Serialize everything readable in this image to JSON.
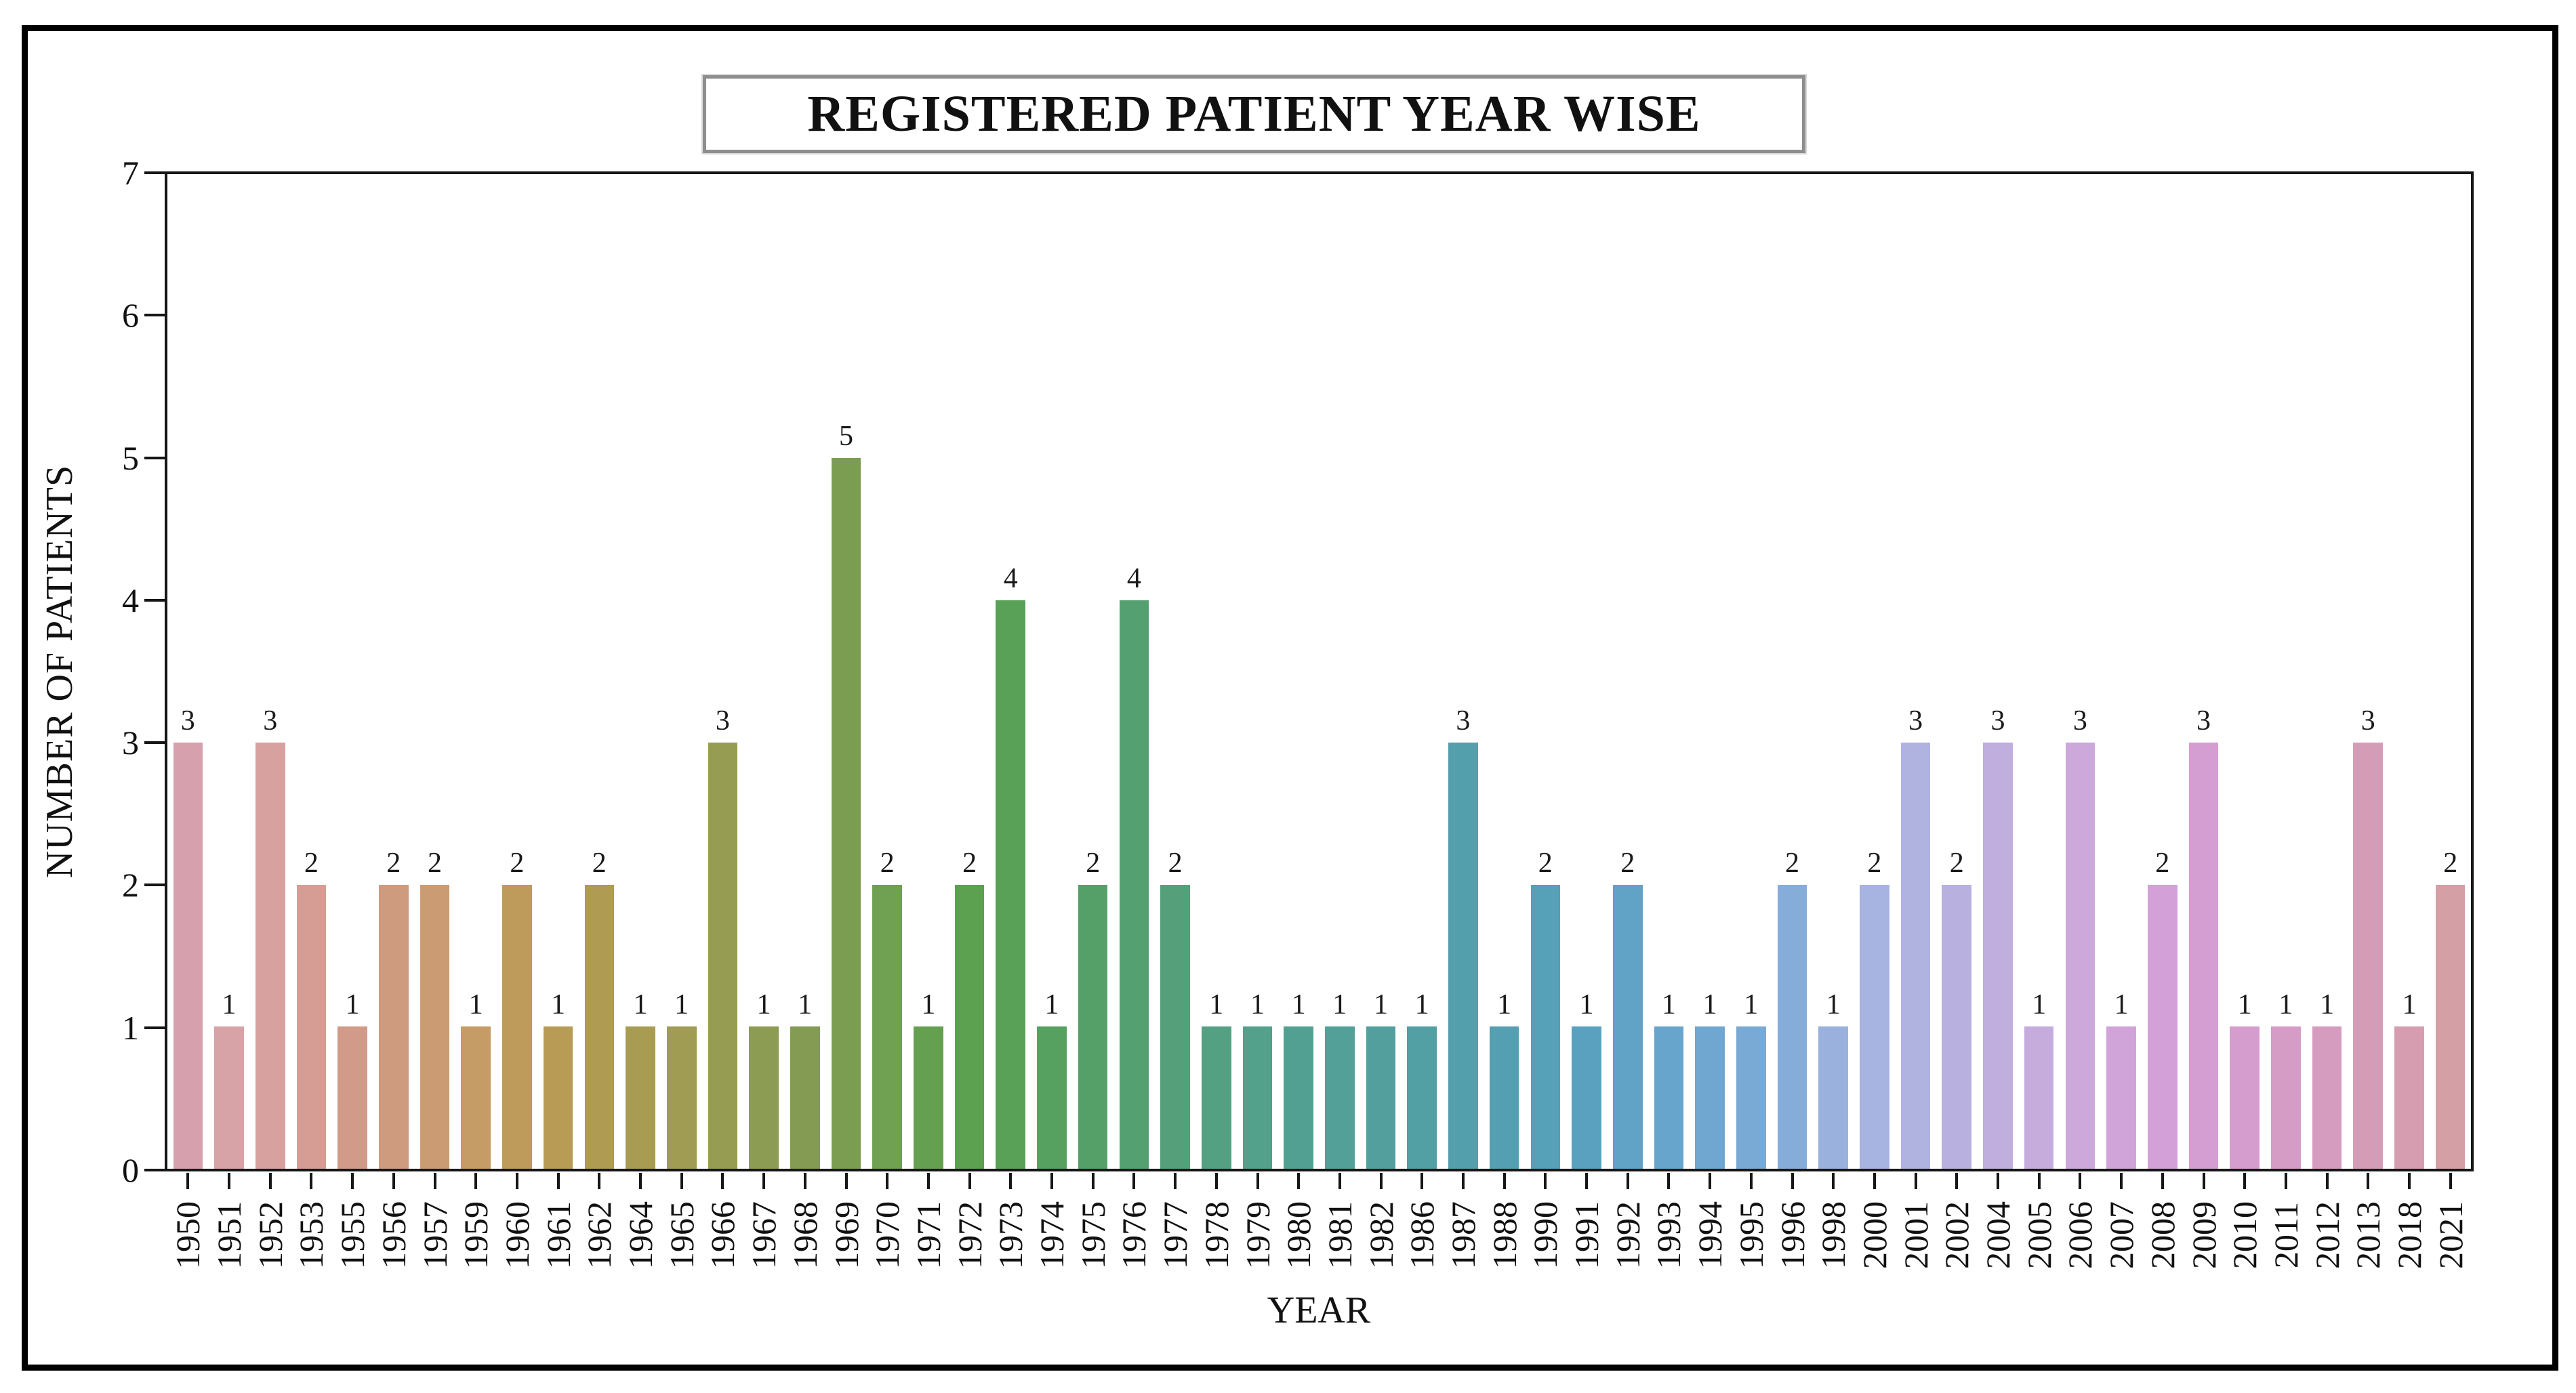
{
  "chart_data": {
    "type": "bar",
    "title": "REGISTERED PATIENT YEAR WISE",
    "xlabel": "YEAR",
    "ylabel": "NUMBER OF PATIENTS",
    "ylim": [
      0,
      7
    ],
    "yticks": [
      0,
      1,
      2,
      3,
      4,
      5,
      6,
      7
    ],
    "grid": false,
    "legend_position": "none",
    "bar_value_labels_shown": true,
    "categories": [
      "1950",
      "1951",
      "1952",
      "1953",
      "1955",
      "1956",
      "1957",
      "1959",
      "1960",
      "1961",
      "1962",
      "1964",
      "1965",
      "1966",
      "1967",
      "1968",
      "1969",
      "1970",
      "1971",
      "1972",
      "1973",
      "1974",
      "1975",
      "1976",
      "1977",
      "1978",
      "1979",
      "1980",
      "1981",
      "1982",
      "1986",
      "1987",
      "1988",
      "1990",
      "1991",
      "1992",
      "1993",
      "1994",
      "1995",
      "1996",
      "1998",
      "2000",
      "2001",
      "2002",
      "2004",
      "2005",
      "2006",
      "2007",
      "2008",
      "2009",
      "2010",
      "2011",
      "2012",
      "2013",
      "2018",
      "2021"
    ],
    "values": [
      3,
      1,
      3,
      2,
      1,
      2,
      2,
      1,
      2,
      1,
      2,
      1,
      1,
      3,
      1,
      1,
      5,
      2,
      1,
      2,
      4,
      1,
      2,
      4,
      2,
      1,
      1,
      1,
      1,
      1,
      1,
      3,
      1,
      2,
      1,
      2,
      1,
      1,
      1,
      2,
      1,
      2,
      3,
      2,
      3,
      1,
      3,
      1,
      2,
      3,
      1,
      1,
      1,
      3,
      1,
      2
    ],
    "bar_colors": [
      "#d6a1ac",
      "#d7a3a7",
      "#d7a1a0",
      "#d59d94",
      "#d29a89",
      "#cf9b7e",
      "#cb9b73",
      "#c59b66",
      "#bf9b5b",
      "#b89b55",
      "#b09b53",
      "#a89c53",
      "#a09c53",
      "#979c53",
      "#8d9c53",
      "#839b52",
      "#7a9d52",
      "#70a051",
      "#65a050",
      "#5ca150",
      "#58a156",
      "#56a15f",
      "#55a068",
      "#55a071",
      "#55a07b",
      "#54a083",
      "#53a08b",
      "#52a092",
      "#52a098",
      "#529f9e",
      "#529fa4",
      "#539fab",
      "#549fb1",
      "#56a0b8",
      "#5aa1bf",
      "#60a3c6",
      "#67a5cc",
      "#6fa7d1",
      "#79aad6",
      "#86add9",
      "#9ab1de",
      "#a7b3e0",
      "#b0b2e0",
      "#b8b0df",
      "#bfaede",
      "#c6abdd",
      "#cca8db",
      "#d0a4d9",
      "#d3a1d7",
      "#d49ed3",
      "#d59dcd",
      "#d59cc6",
      "#d59cbf",
      "#d59cb8",
      "#d59daf",
      "#d49fa5"
    ],
    "spine_color": "#161616",
    "figure_border_color": "#000000",
    "title_box_border_color": "#8e8e8e"
  }
}
